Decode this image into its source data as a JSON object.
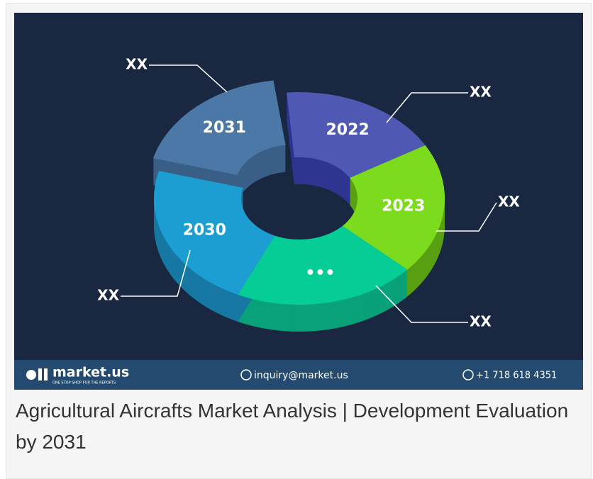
{
  "infographic": {
    "segments": [
      {
        "label": "2022",
        "callout": "XX"
      },
      {
        "label": "2023",
        "callout": "XX"
      },
      {
        "label": "•••",
        "callout": "XX"
      },
      {
        "label": "2030",
        "callout": "XX"
      },
      {
        "label": "2031",
        "callout": "XX"
      }
    ]
  },
  "footer": {
    "brand": "market.us",
    "tagline": "ONE STOP SHOP FOR THE REPORTS",
    "email": "inquiry@market.us",
    "phone": "+1 718 618 4351"
  },
  "caption": "Agricultural Aircrafts Market Analysis | Development Evaluation by 2031"
}
